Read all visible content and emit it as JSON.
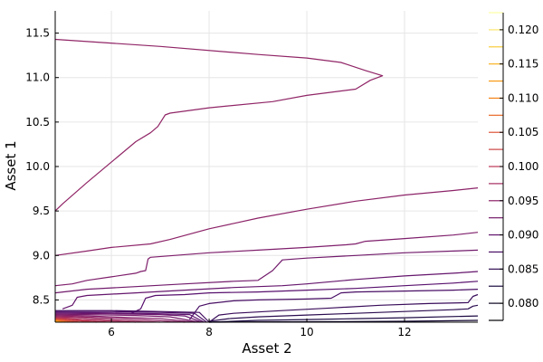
{
  "chart_data": {
    "type": "contour",
    "title": "",
    "xlabel": "Asset 2",
    "ylabel": "Asset 1",
    "xlim": [
      4.85,
      13.5
    ],
    "ylim": [
      8.25,
      11.75
    ],
    "xticks": [
      6,
      8,
      10,
      12
    ],
    "xtick_labels": [
      "6",
      "8",
      "10",
      "12"
    ],
    "yticks": [
      8.5,
      9.0,
      9.5,
      10.0,
      10.5,
      11.0,
      11.5
    ],
    "ytick_labels": [
      "8.5",
      "9.0",
      "9.5",
      "10.0",
      "10.5",
      "11.0",
      "11.5"
    ],
    "grid": true,
    "colorbar": {
      "colormap": "inferno",
      "range": [
        0.0775,
        0.1225
      ],
      "ticks": [
        0.08,
        0.085,
        0.09,
        0.095,
        0.1,
        0.105,
        0.11,
        0.115,
        0.12
      ],
      "tick_labels": [
        "0.080",
        "0.085",
        "0.090",
        "0.095",
        "0.100",
        "0.105",
        "0.110",
        "0.115",
        "0.120"
      ],
      "levels": [
        0.0775,
        0.08,
        0.0825,
        0.085,
        0.0875,
        0.09,
        0.0925,
        0.095,
        0.0975,
        0.1,
        0.1025,
        0.105,
        0.1075,
        0.11,
        0.1125,
        0.115,
        0.1175,
        0.12,
        0.1225
      ]
    },
    "contours": [
      {
        "level": 0.0955,
        "points": [
          [
            4.85,
            11.43
          ],
          [
            7.0,
            11.35
          ],
          [
            9.0,
            11.26
          ],
          [
            10.0,
            11.22
          ],
          [
            10.7,
            11.17
          ],
          [
            11.2,
            11.08
          ],
          [
            11.55,
            11.02
          ],
          [
            11.3,
            10.97
          ],
          [
            11.0,
            10.87
          ],
          [
            10.0,
            10.8
          ],
          [
            9.3,
            10.73
          ],
          [
            8.0,
            10.66
          ],
          [
            7.2,
            10.6
          ],
          [
            7.1,
            10.58
          ],
          [
            6.95,
            10.45
          ],
          [
            6.8,
            10.38
          ],
          [
            6.5,
            10.28
          ],
          [
            6.0,
            10.05
          ],
          [
            5.5,
            9.82
          ],
          [
            5.0,
            9.58
          ],
          [
            4.85,
            9.5
          ]
        ]
      },
      {
        "level": 0.095,
        "points": [
          [
            4.85,
            9.0
          ],
          [
            5.5,
            9.05
          ],
          [
            6.0,
            9.09
          ],
          [
            6.8,
            9.13
          ],
          [
            7.2,
            9.18
          ],
          [
            8.0,
            9.3
          ],
          [
            8.5,
            9.36
          ],
          [
            9.0,
            9.42
          ],
          [
            10.0,
            9.52
          ],
          [
            11.0,
            9.61
          ],
          [
            12.0,
            9.68
          ],
          [
            13.0,
            9.73
          ],
          [
            13.5,
            9.76
          ]
        ]
      },
      {
        "level": 0.0935,
        "points": [
          [
            4.85,
            8.66
          ],
          [
            5.2,
            8.68
          ],
          [
            5.5,
            8.72
          ],
          [
            6.0,
            8.76
          ],
          [
            6.5,
            8.8
          ],
          [
            6.6,
            8.82
          ],
          [
            6.7,
            8.83
          ],
          [
            6.75,
            8.96
          ],
          [
            6.8,
            8.98
          ],
          [
            8.0,
            9.03
          ],
          [
            9.0,
            9.06
          ],
          [
            10.0,
            9.09
          ],
          [
            10.8,
            9.12
          ],
          [
            11.0,
            9.13
          ],
          [
            11.2,
            9.16
          ],
          [
            12.0,
            9.19
          ],
          [
            13.0,
            9.23
          ],
          [
            13.5,
            9.26
          ]
        ]
      },
      {
        "level": 0.092,
        "points": [
          [
            4.85,
            8.58
          ],
          [
            5.5,
            8.62
          ],
          [
            6.5,
            8.65
          ],
          [
            7.5,
            8.68
          ],
          [
            8.5,
            8.71
          ],
          [
            9.0,
            8.72
          ],
          [
            9.3,
            8.83
          ],
          [
            9.5,
            8.95
          ],
          [
            10.0,
            8.97
          ],
          [
            11.0,
            9.0
          ],
          [
            12.0,
            9.03
          ],
          [
            13.0,
            9.05
          ],
          [
            13.5,
            9.06
          ]
        ]
      },
      {
        "level": 0.0905,
        "points": [
          [
            5.0,
            8.4
          ],
          [
            5.2,
            8.44
          ],
          [
            5.3,
            8.53
          ],
          [
            5.5,
            8.55
          ],
          [
            6.5,
            8.58
          ],
          [
            7.5,
            8.61
          ],
          [
            8.5,
            8.64
          ],
          [
            9.5,
            8.66
          ],
          [
            10.0,
            8.68
          ],
          [
            11.0,
            8.73
          ],
          [
            12.0,
            8.77
          ],
          [
            13.0,
            8.8
          ],
          [
            13.5,
            8.82
          ]
        ]
      },
      {
        "level": 0.089,
        "points": [
          [
            6.4,
            8.35
          ],
          [
            6.6,
            8.4
          ],
          [
            6.7,
            8.52
          ],
          [
            6.9,
            8.55
          ],
          [
            7.5,
            8.56
          ],
          [
            8.0,
            8.58
          ],
          [
            9.0,
            8.59
          ],
          [
            10.0,
            8.61
          ],
          [
            11.0,
            8.63
          ],
          [
            12.0,
            8.66
          ],
          [
            13.0,
            8.69
          ],
          [
            13.5,
            8.71
          ]
        ]
      },
      {
        "level": 0.0875,
        "points": [
          [
            7.6,
            8.28
          ],
          [
            7.8,
            8.43
          ],
          [
            8.0,
            8.46
          ],
          [
            8.5,
            8.49
          ],
          [
            9.0,
            8.5
          ],
          [
            10.0,
            8.51
          ],
          [
            10.5,
            8.52
          ],
          [
            10.7,
            8.58
          ],
          [
            11.0,
            8.59
          ],
          [
            12.0,
            8.6
          ],
          [
            13.0,
            8.61
          ],
          [
            13.5,
            8.62
          ]
        ]
      },
      {
        "level": 0.086,
        "points": [
          [
            8.0,
            8.25
          ],
          [
            8.2,
            8.33
          ],
          [
            8.5,
            8.35
          ],
          [
            9.5,
            8.38
          ],
          [
            10.5,
            8.41
          ],
          [
            11.5,
            8.44
          ],
          [
            12.5,
            8.46
          ],
          [
            13.3,
            8.47
          ],
          [
            13.4,
            8.54
          ],
          [
            13.5,
            8.56
          ]
        ]
      },
      {
        "level": 0.0845,
        "points": [
          [
            8.0,
            8.26
          ],
          [
            8.4,
            8.29
          ],
          [
            9.0,
            8.31
          ],
          [
            10.0,
            8.33
          ],
          [
            11.0,
            8.35
          ],
          [
            12.0,
            8.37
          ],
          [
            13.0,
            8.39
          ],
          [
            13.3,
            8.4
          ],
          [
            13.4,
            8.43
          ],
          [
            13.5,
            8.44
          ]
        ]
      },
      {
        "level": 0.083,
        "points": [
          [
            8.0,
            8.25
          ],
          [
            9.0,
            8.27
          ],
          [
            10.0,
            8.28
          ],
          [
            11.0,
            8.29
          ],
          [
            12.0,
            8.3
          ],
          [
            13.5,
            8.32
          ]
        ]
      },
      {
        "level": 0.0815,
        "points": [
          [
            8.0,
            8.25
          ],
          [
            10.0,
            8.255
          ],
          [
            12.0,
            8.26
          ],
          [
            13.5,
            8.27
          ]
        ]
      },
      {
        "level": 0.087,
        "points": [
          [
            4.85,
            8.38
          ],
          [
            6.0,
            8.38
          ],
          [
            7.0,
            8.37
          ],
          [
            7.8,
            8.36
          ],
          [
            8.0,
            8.25
          ]
        ]
      },
      {
        "level": 0.088,
        "points": [
          [
            4.85,
            8.37
          ],
          [
            6.0,
            8.37
          ],
          [
            7.0,
            8.36
          ],
          [
            7.7,
            8.35
          ],
          [
            7.95,
            8.25
          ]
        ]
      },
      {
        "level": 0.0895,
        "points": [
          [
            4.85,
            8.36
          ],
          [
            6.0,
            8.355
          ],
          [
            7.0,
            8.345
          ],
          [
            7.6,
            8.335
          ],
          [
            7.9,
            8.25
          ]
        ]
      },
      {
        "level": 0.091,
        "points": [
          [
            4.85,
            8.35
          ],
          [
            6.0,
            8.345
          ],
          [
            7.0,
            8.335
          ],
          [
            7.5,
            8.32
          ],
          [
            7.85,
            8.25
          ]
        ]
      },
      {
        "level": 0.0925,
        "points": [
          [
            4.85,
            8.34
          ],
          [
            5.5,
            8.335
          ],
          [
            6.5,
            8.325
          ],
          [
            7.2,
            8.31
          ],
          [
            7.8,
            8.25
          ]
        ]
      },
      {
        "level": 0.094,
        "points": [
          [
            4.85,
            8.33
          ],
          [
            5.3,
            8.325
          ],
          [
            6.0,
            8.31
          ],
          [
            7.0,
            8.29
          ],
          [
            7.7,
            8.25
          ]
        ]
      },
      {
        "level": 0.0955,
        "points": [
          [
            4.85,
            8.32
          ],
          [
            5.2,
            8.315
          ],
          [
            5.8,
            8.3
          ],
          [
            6.6,
            8.28
          ],
          [
            7.5,
            8.25
          ]
        ]
      },
      {
        "level": 0.097,
        "points": [
          [
            4.85,
            8.31
          ],
          [
            5.2,
            8.305
          ],
          [
            5.6,
            8.29
          ],
          [
            6.2,
            8.27
          ],
          [
            7.0,
            8.25
          ]
        ]
      },
      {
        "level": 0.0985,
        "points": [
          [
            4.85,
            8.3
          ],
          [
            5.1,
            8.295
          ],
          [
            5.4,
            8.28
          ],
          [
            5.9,
            8.265
          ],
          [
            6.5,
            8.25
          ]
        ]
      },
      {
        "level": 0.1,
        "points": [
          [
            4.85,
            8.295
          ],
          [
            5.1,
            8.29
          ],
          [
            5.3,
            8.275
          ],
          [
            5.6,
            8.26
          ],
          [
            6.0,
            8.25
          ]
        ]
      },
      {
        "level": 0.102,
        "points": [
          [
            4.85,
            8.29
          ],
          [
            5.0,
            8.285
          ],
          [
            5.2,
            8.27
          ],
          [
            5.45,
            8.258
          ],
          [
            5.7,
            8.25
          ]
        ]
      },
      {
        "level": 0.104,
        "points": [
          [
            4.85,
            8.285
          ],
          [
            5.0,
            8.275
          ],
          [
            5.15,
            8.265
          ],
          [
            5.35,
            8.25
          ]
        ]
      },
      {
        "level": 0.106,
        "points": [
          [
            4.85,
            8.28
          ],
          [
            5.0,
            8.27
          ],
          [
            5.2,
            8.25
          ]
        ]
      },
      {
        "level": 0.108,
        "points": [
          [
            4.85,
            8.275
          ],
          [
            4.97,
            8.262
          ],
          [
            5.1,
            8.25
          ]
        ]
      },
      {
        "level": 0.11,
        "points": [
          [
            4.85,
            8.27
          ],
          [
            4.95,
            8.258
          ],
          [
            5.05,
            8.25
          ]
        ]
      },
      {
        "level": 0.112,
        "points": [
          [
            4.85,
            8.265
          ],
          [
            4.92,
            8.255
          ],
          [
            4.98,
            8.25
          ]
        ]
      },
      {
        "level": 0.114,
        "points": [
          [
            4.85,
            8.26
          ],
          [
            4.9,
            8.253
          ],
          [
            4.94,
            8.25
          ]
        ]
      }
    ]
  }
}
